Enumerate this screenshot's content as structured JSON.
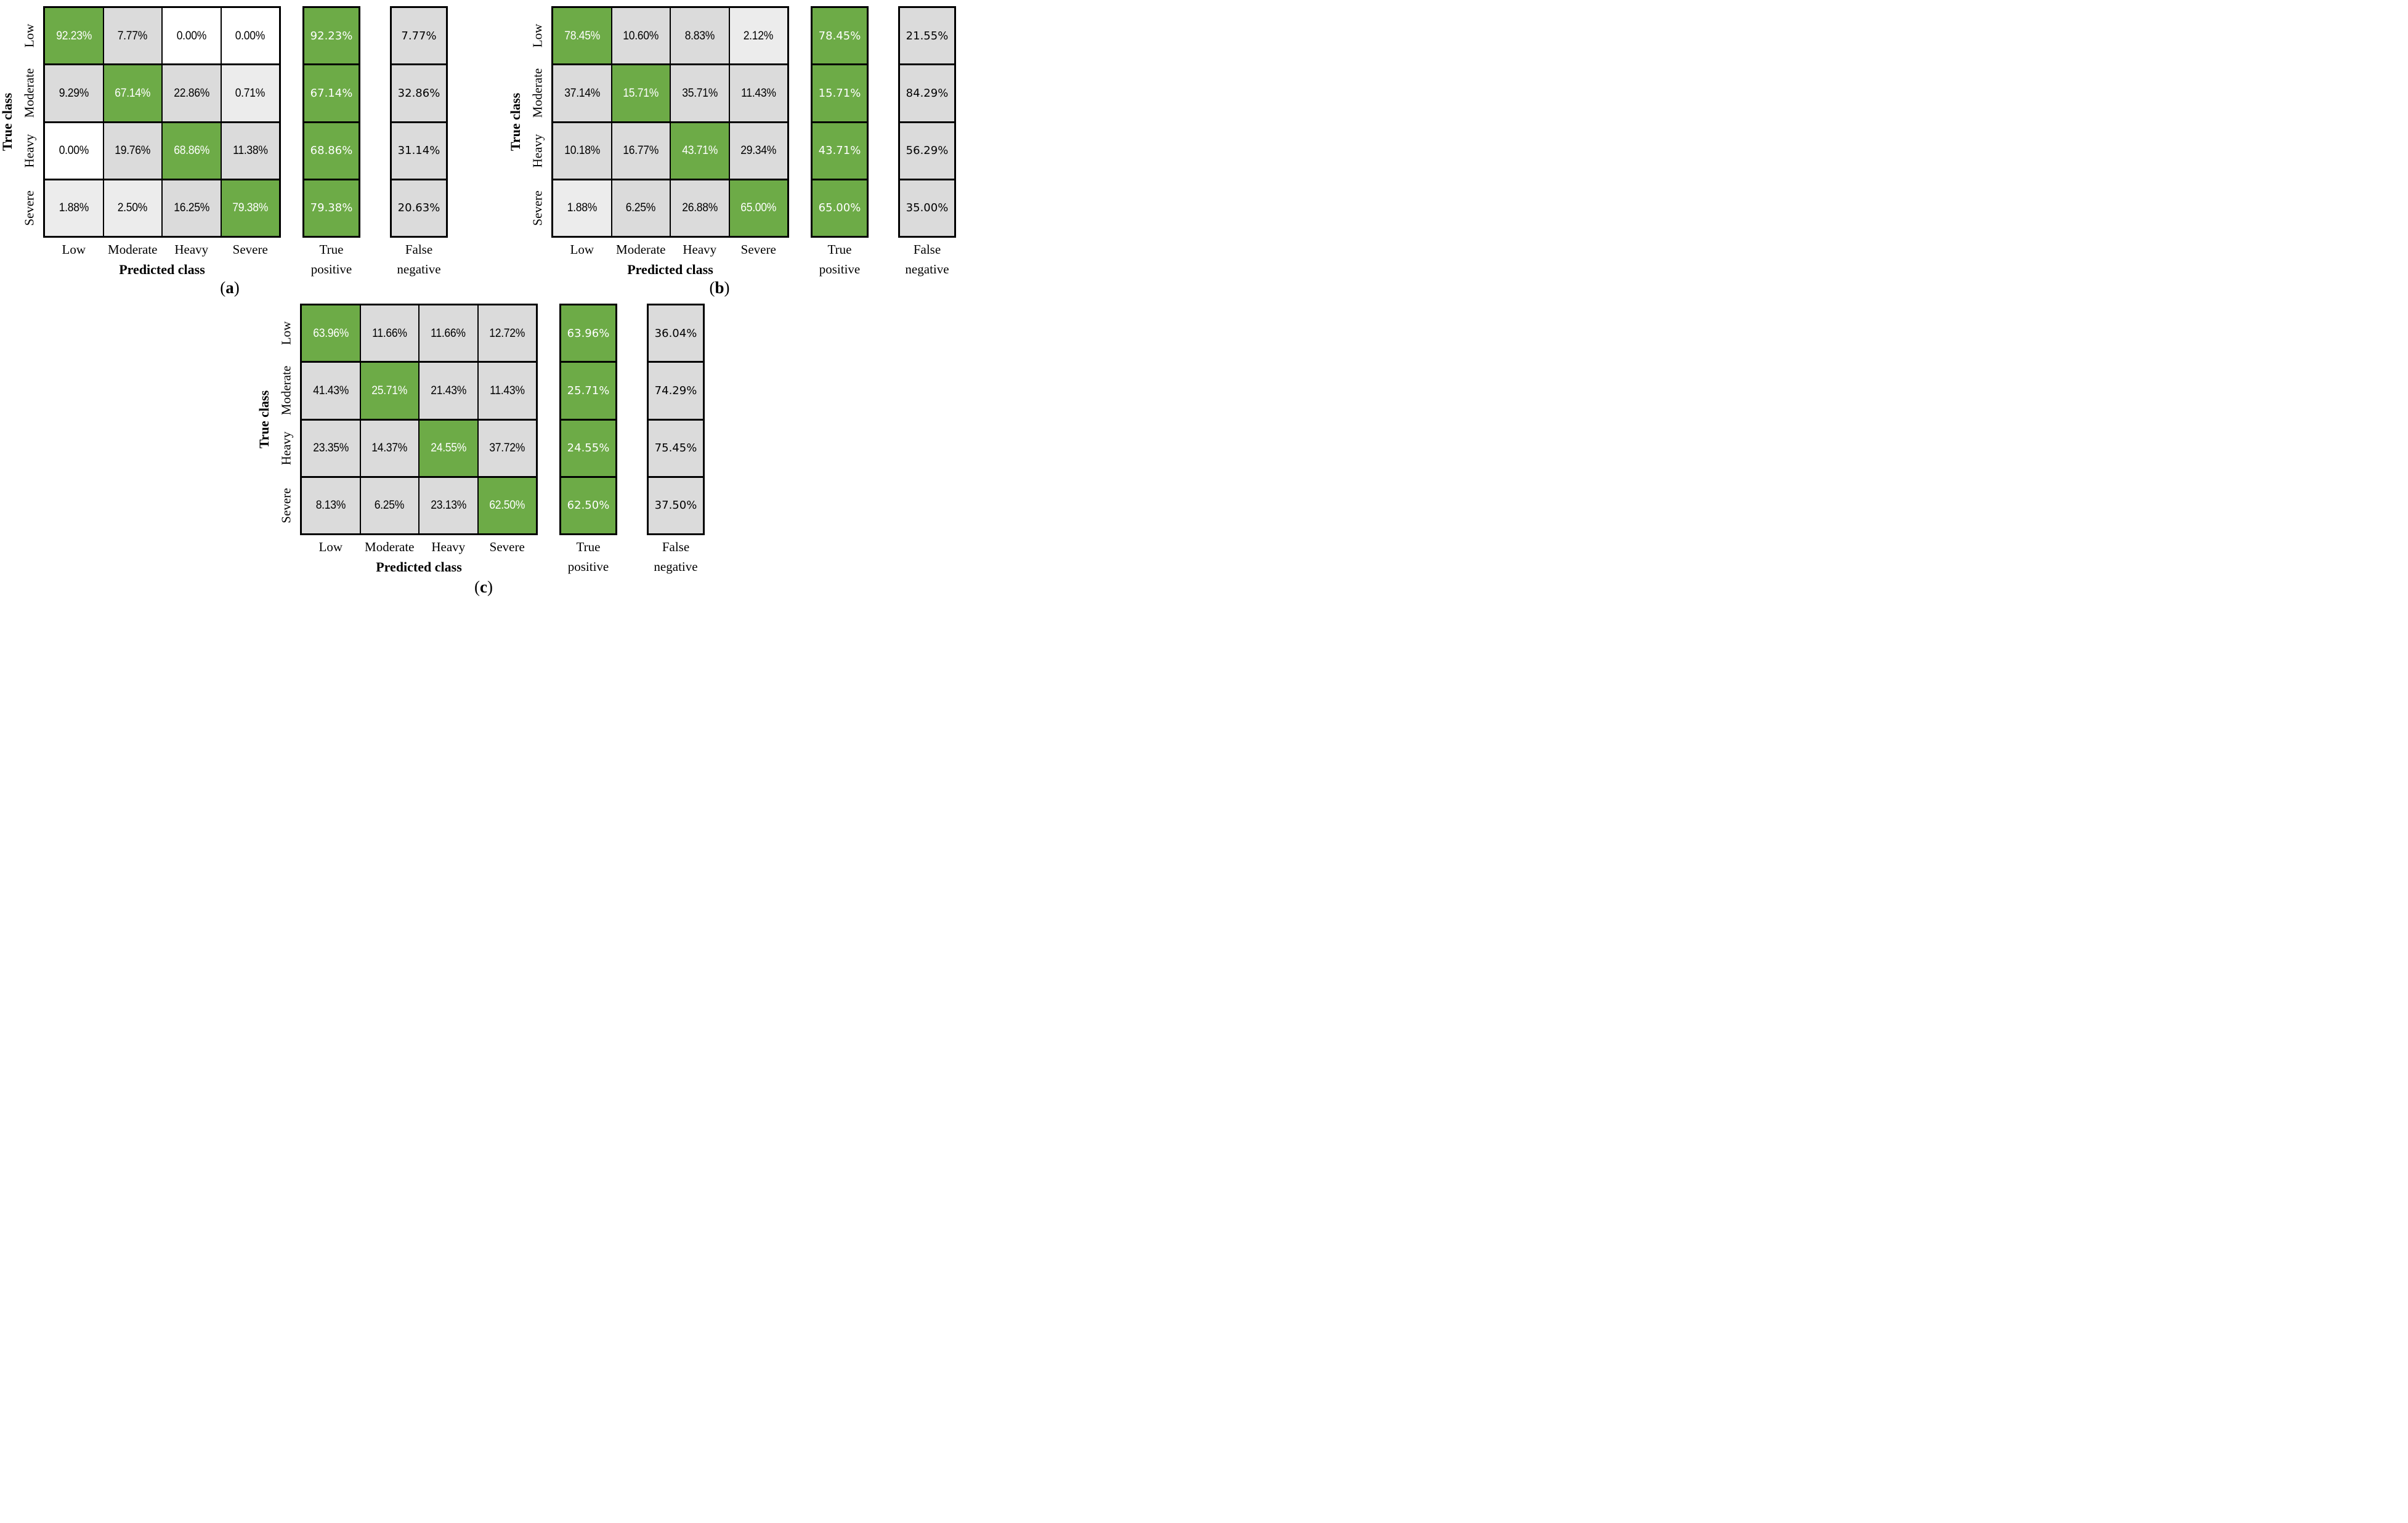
{
  "colors": {
    "green": "#6dab47",
    "grey": "#dbdbdb",
    "xlight": "#ececec",
    "white": "#ffffff",
    "border": "#000000",
    "text_on_green": "#ffffff",
    "text_on_grey": "#000000"
  },
  "labels": {
    "true_class": "True class",
    "predicted_class": "Predicted class",
    "tp_line1": "True",
    "tp_line2": "positive",
    "fn_line1": "False",
    "fn_line2": "negative",
    "paren_open": "(",
    "paren_close": ")",
    "classes": [
      "Low",
      "Moderate",
      "Heavy",
      "Severe"
    ]
  },
  "panels": [
    {
      "caption_letter": "a",
      "matrix": [
        [
          "92.23%",
          "7.77%",
          "0.00%",
          "0.00%"
        ],
        [
          "9.29%",
          "67.14%",
          "22.86%",
          "0.71%"
        ],
        [
          "0.00%",
          "19.76%",
          "68.86%",
          "11.38%"
        ],
        [
          "1.88%",
          "2.50%",
          "16.25%",
          "79.38%"
        ]
      ],
      "shades": [
        [
          "green",
          "grey",
          "white",
          "white"
        ],
        [
          "grey",
          "green",
          "grey",
          "xlight"
        ],
        [
          "white",
          "grey",
          "green",
          "grey"
        ],
        [
          "xlight",
          "xlight",
          "grey",
          "green"
        ]
      ],
      "true_positive": [
        "92.23%",
        "67.14%",
        "68.86%",
        "79.38%"
      ],
      "false_negative": [
        "7.77%",
        "32.86%",
        "31.14%",
        "20.63%"
      ]
    },
    {
      "caption_letter": "b",
      "matrix": [
        [
          "78.45%",
          "10.60%",
          "8.83%",
          "2.12%"
        ],
        [
          "37.14%",
          "15.71%",
          "35.71%",
          "11.43%"
        ],
        [
          "10.18%",
          "16.77%",
          "43.71%",
          "29.34%"
        ],
        [
          "1.88%",
          "6.25%",
          "26.88%",
          "65.00%"
        ]
      ],
      "shades": [
        [
          "green",
          "grey",
          "grey",
          "xlight"
        ],
        [
          "grey",
          "green",
          "grey",
          "grey"
        ],
        [
          "grey",
          "grey",
          "green",
          "grey"
        ],
        [
          "xlight",
          "grey",
          "grey",
          "green"
        ]
      ],
      "true_positive": [
        "78.45%",
        "15.71%",
        "43.71%",
        "65.00%"
      ],
      "false_negative": [
        "21.55%",
        "84.29%",
        "56.29%",
        "35.00%"
      ]
    },
    {
      "caption_letter": "c",
      "matrix": [
        [
          "63.96%",
          "11.66%",
          "11.66%",
          "12.72%"
        ],
        [
          "41.43%",
          "25.71%",
          "21.43%",
          "11.43%"
        ],
        [
          "23.35%",
          "14.37%",
          "24.55%",
          "37.72%"
        ],
        [
          "8.13%",
          "6.25%",
          "23.13%",
          "62.50%"
        ]
      ],
      "shades": [
        [
          "green",
          "grey",
          "grey",
          "grey"
        ],
        [
          "grey",
          "green",
          "grey",
          "grey"
        ],
        [
          "grey",
          "grey",
          "green",
          "grey"
        ],
        [
          "grey",
          "grey",
          "grey",
          "green"
        ]
      ],
      "true_positive": [
        "63.96%",
        "25.71%",
        "24.55%",
        "62.50%"
      ],
      "false_negative": [
        "36.04%",
        "74.29%",
        "75.45%",
        "37.50%"
      ]
    }
  ],
  "chart_data": [
    {
      "type": "heatmap",
      "panel": "a",
      "xlabel": "Predicted class",
      "ylabel": "True class",
      "x_categories": [
        "Low",
        "Moderate",
        "Heavy",
        "Severe"
      ],
      "y_categories": [
        "Low",
        "Moderate",
        "Heavy",
        "Severe"
      ],
      "matrix_percent": [
        [
          92.23,
          7.77,
          0.0,
          0.0
        ],
        [
          9.29,
          67.14,
          22.86,
          0.71
        ],
        [
          0.0,
          19.76,
          68.86,
          11.38
        ],
        [
          1.88,
          2.5,
          16.25,
          79.38
        ]
      ],
      "true_positive_percent": [
        92.23,
        67.14,
        68.86,
        79.38
      ],
      "false_negative_percent": [
        7.77,
        32.86,
        31.14,
        20.63
      ],
      "diagonal_color": "#6dab47",
      "grid": true,
      "legend": false
    },
    {
      "type": "heatmap",
      "panel": "b",
      "xlabel": "Predicted class",
      "ylabel": "True class",
      "x_categories": [
        "Low",
        "Moderate",
        "Heavy",
        "Severe"
      ],
      "y_categories": [
        "Low",
        "Moderate",
        "Heavy",
        "Severe"
      ],
      "matrix_percent": [
        [
          78.45,
          10.6,
          8.83,
          2.12
        ],
        [
          37.14,
          15.71,
          35.71,
          11.43
        ],
        [
          10.18,
          16.77,
          43.71,
          29.34
        ],
        [
          1.88,
          6.25,
          26.88,
          65.0
        ]
      ],
      "true_positive_percent": [
        78.45,
        15.71,
        43.71,
        65.0
      ],
      "false_negative_percent": [
        21.55,
        84.29,
        56.29,
        35.0
      ],
      "diagonal_color": "#6dab47",
      "grid": true,
      "legend": false
    },
    {
      "type": "heatmap",
      "panel": "c",
      "xlabel": "Predicted class",
      "ylabel": "True class",
      "x_categories": [
        "Low",
        "Moderate",
        "Heavy",
        "Severe"
      ],
      "y_categories": [
        "Low",
        "Moderate",
        "Heavy",
        "Severe"
      ],
      "matrix_percent": [
        [
          63.96,
          11.66,
          11.66,
          12.72
        ],
        [
          41.43,
          25.71,
          21.43,
          11.43
        ],
        [
          23.35,
          14.37,
          24.55,
          37.72
        ],
        [
          8.13,
          6.25,
          23.13,
          62.5
        ]
      ],
      "true_positive_percent": [
        63.96,
        25.71,
        24.55,
        62.5
      ],
      "false_negative_percent": [
        36.04,
        74.29,
        75.45,
        37.5
      ],
      "diagonal_color": "#6dab47",
      "grid": true,
      "legend": false
    }
  ]
}
